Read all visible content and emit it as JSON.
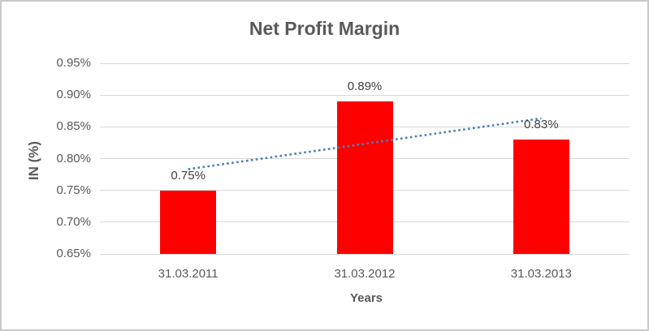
{
  "frame": {
    "border_color": "#c9c9c9",
    "background_color": "#ffffff"
  },
  "chart_data": {
    "type": "bar",
    "title": "Net Profit Margin",
    "xlabel": "Years",
    "ylabel": "IN (%)",
    "categories": [
      "31.03.2011",
      "31.03.2012",
      "31.03.2013"
    ],
    "values": [
      0.75,
      0.89,
      0.83
    ],
    "data_labels": [
      "0.75%",
      "0.89%",
      "0.83%"
    ],
    "ylim": [
      0.65,
      0.95
    ],
    "ytick_values": [
      0.95,
      0.9,
      0.85,
      0.8,
      0.75,
      0.7,
      0.65
    ],
    "ytick_labels": [
      "0.95%",
      "0.90%",
      "0.85%",
      "0.80%",
      "0.75%",
      "0.70%",
      "0.65%"
    ],
    "grid": true,
    "legend": "none",
    "bar_color": "#ff0000",
    "gridline_color": "#d9d9d9",
    "trendline": {
      "type": "linear",
      "style": "dotted",
      "color": "#4a7ebb"
    },
    "text_colors": {
      "title": "#595959",
      "axis": "#595959",
      "data_label": "#404040"
    }
  }
}
